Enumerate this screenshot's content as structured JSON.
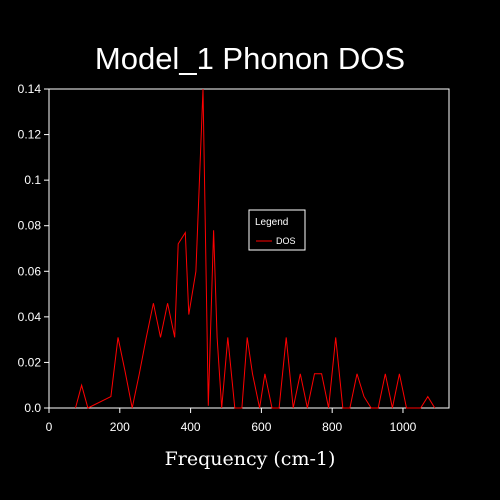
{
  "chart_data": {
    "type": "line",
    "title": "Model_1 Phonon DOS",
    "xlabel": "Frequency (cm-1)",
    "ylabel": "",
    "xlim": [
      0,
      1130
    ],
    "ylim": [
      0,
      0.14
    ],
    "xticks": [
      0,
      200,
      400,
      600,
      800,
      1000
    ],
    "xtick_labels": [
      "0",
      "200",
      "400",
      "600",
      "800",
      "1000"
    ],
    "yticks": [
      0,
      0.02,
      0.04,
      0.06,
      0.08,
      0.1,
      0.12,
      0.14
    ],
    "ytick_labels": [
      "0.0",
      "0.02",
      "0.04",
      "0.06",
      "0.08",
      "0.1",
      "0.12",
      "0.14"
    ],
    "grid": false,
    "legend": {
      "title": "Legend",
      "placement": "center-right"
    },
    "colors": {
      "background": "#000000",
      "axes": "#ffffff",
      "series": "#ff0000"
    },
    "series": [
      {
        "name": "DOS",
        "color": "#ff0000",
        "x": [
          75,
          92,
          110,
          175,
          195,
          215,
          235,
          255,
          275,
          295,
          315,
          335,
          355,
          365,
          385,
          395,
          415,
          435,
          450,
          465,
          475,
          488,
          505,
          525,
          545,
          560,
          575,
          595,
          610,
          630,
          650,
          670,
          690,
          710,
          730,
          750,
          770,
          790,
          810,
          830,
          850,
          870,
          890,
          910,
          930,
          950,
          970,
          990,
          1010,
          1030,
          1050,
          1070,
          1090
        ],
        "y": [
          0,
          0.01,
          0,
          0.005,
          0.031,
          0.016,
          0,
          0.015,
          0.031,
          0.046,
          0.031,
          0.046,
          0.031,
          0.072,
          0.077,
          0.041,
          0.06,
          0.14,
          0.001,
          0.078,
          0.031,
          0,
          0.031,
          0,
          0,
          0.031,
          0.015,
          0,
          0.015,
          0,
          0,
          0.031,
          0,
          0.015,
          0,
          0.015,
          0.015,
          0,
          0.031,
          0,
          0,
          0.015,
          0.005,
          0,
          0,
          0.015,
          0,
          0.015,
          0,
          0,
          0,
          0.005,
          0
        ]
      }
    ]
  }
}
